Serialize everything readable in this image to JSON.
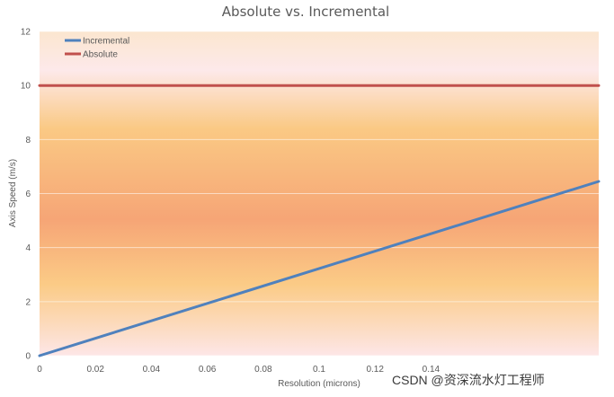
{
  "chart_data": {
    "type": "line",
    "title": "Absolute vs. Incremental",
    "xlabel": "Resolution (microns)",
    "ylabel": "Axis Speed (m/s)",
    "xlim": [
      0,
      0.2
    ],
    "ylim": [
      0,
      12
    ],
    "x_ticks": [
      0,
      0.02,
      0.04,
      0.06,
      0.08,
      0.1,
      0.12,
      0.14
    ],
    "x_tick_labels": [
      "0",
      "0.02",
      "0.04",
      "0.06",
      "0.08",
      "0.1",
      "0.12",
      "0.14"
    ],
    "y_ticks": [
      0,
      2,
      4,
      6,
      8,
      10,
      12
    ],
    "y_tick_labels": [
      "0",
      "2",
      "4",
      "6",
      "8",
      "10",
      "12"
    ],
    "grid": true,
    "legend_position": "top-left",
    "series": [
      {
        "name": "Incremental",
        "color": "#4f81bd",
        "x": [
          0,
          0.2
        ],
        "y": [
          0,
          6.45
        ]
      },
      {
        "name": "Absolute",
        "color": "#c0504d",
        "x": [
          0,
          0.2
        ],
        "y": [
          10,
          10
        ]
      }
    ],
    "background_gradient": [
      "#fde9e6",
      "#f9c97e",
      "#f6a170",
      "#fbcc84",
      "#fde4e4"
    ]
  },
  "watermark": "CSDN @资深流水灯工程师"
}
